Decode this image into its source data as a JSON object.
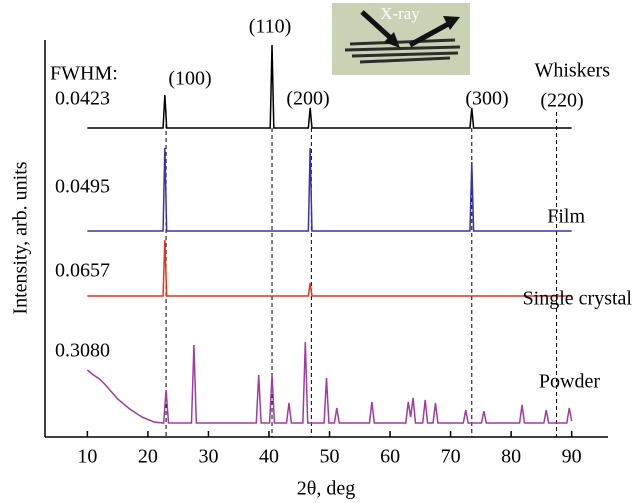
{
  "chart_data": {
    "type": "line",
    "x_label": "2θ, deg",
    "y_label": "Intensity, arb. units",
    "fwhm_title": "FWHM:",
    "inset_label": "X-ray",
    "xlim": [
      3,
      96
    ],
    "xticks": [
      10,
      20,
      30,
      40,
      50,
      60,
      70,
      80,
      90
    ],
    "ylim": [
      0,
      397
    ],
    "reflections": [
      {
        "label": "(100)",
        "x": 23
      },
      {
        "label": "(110)",
        "x": 40.5
      },
      {
        "label": "(200)",
        "x": 47
      },
      {
        "label": "(300)",
        "x": 73.5
      },
      {
        "label": "(220)",
        "x": 87.5
      }
    ],
    "series": [
      {
        "name": "Whiskers",
        "color": "#000000",
        "fwhm": 0.0423,
        "x": [
          10,
          22.5,
          22.8,
          23.1,
          40.2,
          40.5,
          40.8,
          46.5,
          46.8,
          47.1,
          73.2,
          73.5,
          73.8,
          90
        ],
        "values": [
          309,
          309,
          342,
          309,
          309,
          392,
          309,
          309,
          329,
          309,
          309,
          329,
          309,
          309
        ]
      },
      {
        "name": "Film",
        "color": "#3a32a8",
        "fwhm": 0.0495,
        "x": [
          10,
          22.5,
          22.8,
          23.1,
          46.5,
          46.8,
          47.1,
          73.2,
          73.5,
          73.8,
          90
        ],
        "values": [
          206,
          206,
          289,
          206,
          206,
          289,
          206,
          206,
          275,
          206,
          206
        ]
      },
      {
        "name": "Single crystal",
        "color": "#e8321e",
        "fwhm": 0.0657,
        "x": [
          10,
          22.5,
          22.8,
          23.1,
          46.5,
          46.8,
          47.1,
          90
        ],
        "values": [
          141,
          141,
          197,
          141,
          141,
          154,
          141,
          141
        ]
      },
      {
        "name": "Powder",
        "color": "#a03ca0",
        "fwhm": {
          "value": 0.308,
          "label": "0.3080"
        },
        "x": [
          10,
          11,
          12,
          13,
          14,
          15,
          17,
          19,
          21,
          22.6,
          23.0,
          23.4,
          27.2,
          27.6,
          28.0,
          37.9,
          38.3,
          38.7,
          40.1,
          40.5,
          40.9,
          42.9,
          43.3,
          43.7,
          45.6,
          46.0,
          46.4,
          49.1,
          49.5,
          49.9,
          50.8,
          51.2,
          51.6,
          56.6,
          57.0,
          57.4,
          62.6,
          63.0,
          63.4,
          63.8,
          64.2,
          65.4,
          65.8,
          66.2,
          67.1,
          67.5,
          67.9,
          72.1,
          72.5,
          72.9,
          75.1,
          75.5,
          75.9,
          81.4,
          81.8,
          82.2,
          85.4,
          85.8,
          86.2,
          89.2,
          89.6,
          90
        ],
        "values": [
          67,
          62,
          58,
          52,
          45,
          38,
          28,
          20,
          15,
          14,
          47,
          14,
          14,
          92,
          14,
          14,
          62,
          14,
          14,
          62,
          14,
          14,
          34,
          14,
          14,
          95,
          14,
          14,
          59,
          14,
          14,
          29,
          14,
          14,
          35,
          14,
          14,
          35,
          20,
          39,
          14,
          14,
          37,
          14,
          14,
          34,
          14,
          14,
          27,
          14,
          14,
          26,
          14,
          14,
          32,
          14,
          14,
          27,
          14,
          14,
          29,
          16
        ]
      }
    ]
  }
}
